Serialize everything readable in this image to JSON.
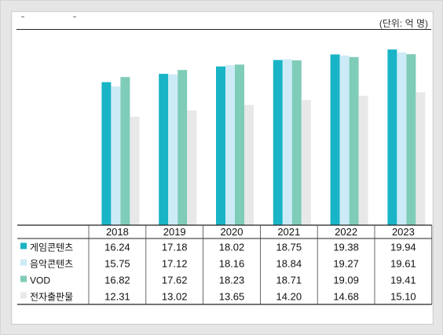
{
  "unit_label": "(단위: 억 명)",
  "colors": {
    "series_1": "#19b4c6",
    "series_2": "#cdebf7",
    "series_3": "#7fccb8",
    "series_4": "#e8e8e8"
  },
  "chart_data": {
    "type": "bar",
    "title": "",
    "xlabel": "",
    "ylabel": "",
    "categories": [
      "2018",
      "2019",
      "2020",
      "2021",
      "2022",
      "2023"
    ],
    "series": [
      {
        "name": "게임콘텐츠",
        "values": [
          16.24,
          17.18,
          18.02,
          18.75,
          19.38,
          19.94
        ]
      },
      {
        "name": "음악콘텐츠",
        "values": [
          15.75,
          17.12,
          18.16,
          18.84,
          19.27,
          19.61
        ]
      },
      {
        "name": "VOD",
        "values": [
          16.82,
          17.62,
          18.23,
          18.71,
          19.09,
          19.41
        ]
      },
      {
        "name": "전자출판물",
        "values": [
          12.31,
          13.02,
          13.65,
          14.2,
          14.68,
          15.1
        ]
      }
    ],
    "cell_text": [
      [
        "16.24",
        "17.18",
        "18.02",
        "18.75",
        "19.38",
        "19.94"
      ],
      [
        "15.75",
        "17.12",
        "18.16",
        "18.84",
        "19.27",
        "19.61"
      ],
      [
        "16.82",
        "17.62",
        "18.23",
        "18.71",
        "19.09",
        "19.41"
      ],
      [
        "12.31",
        "13.02",
        "13.65",
        "14.20",
        "14.68",
        "15.10"
      ]
    ],
    "ylim": [
      0,
      22
    ],
    "grid": false,
    "legend": "data-table"
  }
}
